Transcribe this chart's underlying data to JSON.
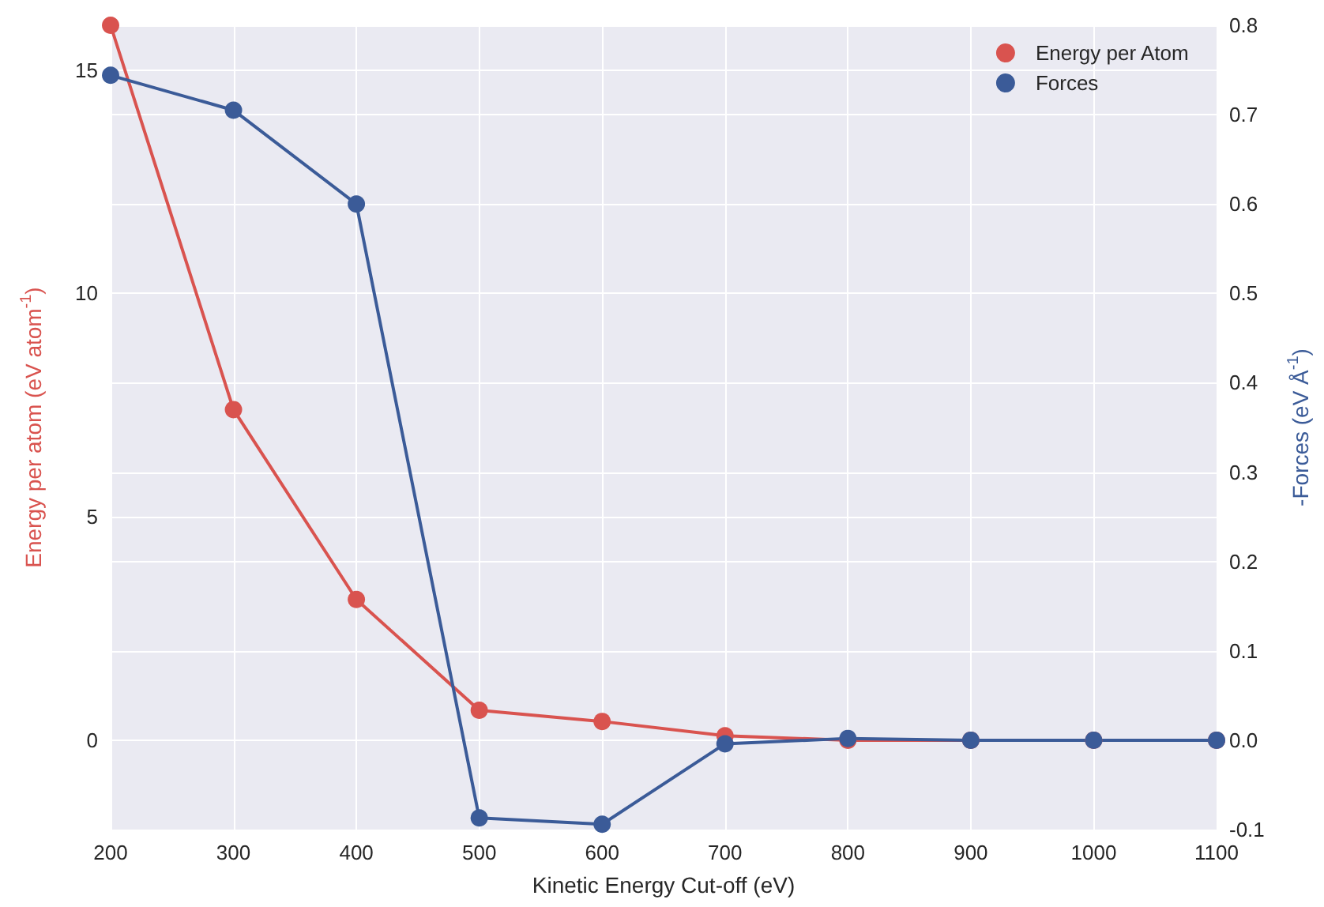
{
  "chart_data": {
    "type": "line",
    "xlabel": "Kinetic Energy Cut-off (eV)",
    "ylabel": "Energy per atom (eV atom$^{-1}$)",
    "y2label": "-Forces (eV Å$^{-1}$)",
    "x": [
      200,
      300,
      400,
      500,
      600,
      700,
      800,
      900,
      1000,
      1100
    ],
    "series": [
      {
        "name": "Energy per Atom",
        "color": "#d9534f",
        "values": [
          16,
          7.4,
          3.15,
          0.67,
          0.42,
          0.1,
          0,
          0,
          0,
          0
        ]
      },
      {
        "name": "Forces",
        "color": "#3b5b98",
        "axis": "y2",
        "values": [
          0.744,
          0.705,
          0.6,
          -0.087,
          -0.094,
          -0.004,
          0.002,
          0,
          0,
          0
        ]
      }
    ],
    "xlim": [
      200,
      1100
    ],
    "xticks": [
      200,
      300,
      400,
      500,
      600,
      700,
      800,
      900,
      1000,
      1100
    ],
    "ylim": [
      -2,
      16
    ],
    "yticks": [
      0,
      5,
      10,
      15
    ],
    "y2lim": [
      -0.1,
      0.8
    ],
    "y2ticks": [
      {
        "value": -0.1,
        "label": "-0.1"
      },
      {
        "value": 0,
        "label": "0.0"
      },
      {
        "value": 0.1,
        "label": "0.1"
      },
      {
        "value": 0.2,
        "label": "0.2"
      },
      {
        "value": 0.3,
        "label": "0.3"
      },
      {
        "value": 0.4,
        "label": "0.4"
      },
      {
        "value": 0.5,
        "label": "0.5"
      },
      {
        "value": 0.6,
        "label": "0.6"
      },
      {
        "value": 0.7,
        "label": "0.7"
      },
      {
        "value": 0.8,
        "label": "0.8"
      }
    ],
    "grid": true,
    "legend": "top right",
    "marker": "circle",
    "line_style": "solid"
  }
}
